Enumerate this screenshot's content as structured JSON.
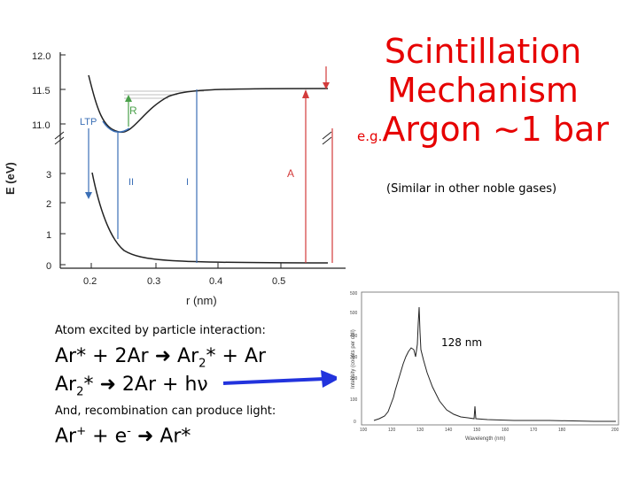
{
  "title": {
    "line1": "Scintillation",
    "line2": "Mechanism",
    "prefix": "e.g.",
    "line3": "Argon ~1 bar"
  },
  "subtitle": "(Similar in other noble gases)",
  "energy_diagram": {
    "y_axis_label": "E (eV)",
    "x_axis_label": "r (nm)",
    "y_ticks_upper": [
      "12.0",
      "11.5",
      "11.0"
    ],
    "y_ticks_lower": [
      "3",
      "2",
      "1",
      "0"
    ],
    "x_ticks": [
      "0.2",
      "0.3",
      "0.4",
      "0.5"
    ],
    "labels": {
      "ltp": "LTP",
      "r": "R",
      "ii": "II",
      "i": "I",
      "a": "A"
    },
    "colors": {
      "curve": "#222222",
      "blue": "#3b6fb6",
      "green": "#4aa04a",
      "red": "#d33b3b",
      "gray": "#aaaaaa"
    }
  },
  "text_block": {
    "note1": "Atom excited by particle interaction:",
    "eq1": {
      "a": "Ar* + 2Ar ",
      "b": " Ar",
      "sub": "2",
      "c": "* + Ar"
    },
    "eq2": {
      "a": "Ar",
      "sub": "2",
      "b": "* ",
      "c": " 2Ar + hν"
    },
    "note2": "And, recombination can produce light:",
    "eq3": {
      "a": "Ar",
      "sup1": "+",
      "b": " + e",
      "sup2": "-",
      "c": " ",
      "d": " Ar*"
    }
  },
  "spectrum": {
    "peak_label": "128 nm",
    "y_label": "Intensity (counts per cell)",
    "x_label": "Wavelength (nm)",
    "y_ticks": [
      "500",
      "400",
      "300",
      "200",
      "100",
      "0"
    ],
    "x_ticks": [
      "100",
      "120",
      "130",
      "140",
      "150",
      "160",
      "170",
      "180",
      "200"
    ]
  },
  "arrow_color": "#2233dd"
}
